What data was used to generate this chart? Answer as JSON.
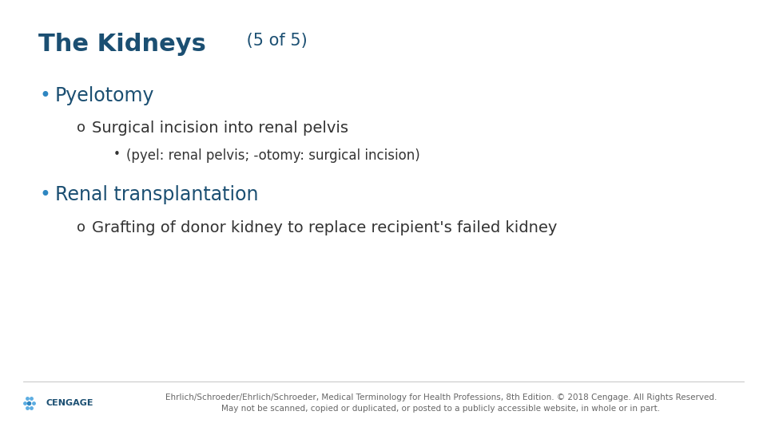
{
  "title_main": "The Kidneys",
  "title_sub": " (5 of 5)",
  "title_color": "#1b4f72",
  "title_sub_color": "#1b4f72",
  "background_color": "#ffffff",
  "bullet1": "Pyelotomy",
  "bullet1_color": "#1b4f72",
  "sub1": "Surgical incision into renal pelvis",
  "sub1_color": "#333333",
  "subsub1": "(pyel: renal pelvis; -otomy: surgical incision)",
  "subsub1_color": "#333333",
  "bullet2": "Renal transplantation",
  "bullet2_color": "#1b4f72",
  "sub2": "Grafting of donor kidney to replace recipient's failed kidney",
  "sub2_color": "#333333",
  "footer_text": "Ehrlich/Schroeder/Ehrlich/Schroeder, Medical Terminology for Health Professions, 8th Edition. © 2018 Cengage. All Rights Reserved.\nMay not be scanned, copied or duplicated, or posted to a publicly accessible website, in whole or in part.",
  "footer_color": "#666666",
  "cengage_label": "CENGAGE",
  "cengage_color": "#1b4f72",
  "dot_color": "#2e86c1",
  "title_fontsize": 22,
  "title_sub_fontsize": 15,
  "bullet_fontsize": 17,
  "sub_fontsize": 14,
  "subsub_fontsize": 12,
  "footer_fontsize": 7.5
}
